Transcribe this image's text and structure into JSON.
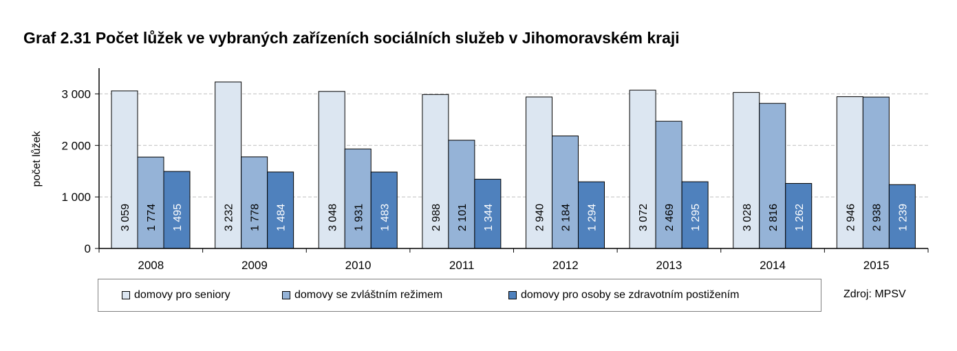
{
  "title": "Graf 2.31 Počet lůžek ve vybraných zařízeních sociálních služeb v Jihomoravském kraji",
  "source": "Zdroj: MPSV",
  "colors": {
    "series1": "#dce6f1",
    "series2": "#95b3d7",
    "series3": "#4f81bd",
    "gridline": "#bfbfbf",
    "axis": "#000000"
  },
  "chart_data": {
    "type": "bar",
    "categories": [
      "2008",
      "2009",
      "2010",
      "2011",
      "2012",
      "2013",
      "2014",
      "2015"
    ],
    "series": [
      {
        "name": "domovy pro seniory",
        "values": [
          3059,
          3232,
          3048,
          2988,
          2940,
          3072,
          3028,
          2946
        ],
        "labels": [
          "3 059",
          "3 232",
          "3 048",
          "2 988",
          "2 940",
          "3 072",
          "3 028",
          "2 946"
        ]
      },
      {
        "name": "domovy se zvláštním režimem",
        "values": [
          1774,
          1778,
          1931,
          2101,
          2184,
          2469,
          2816,
          2938
        ],
        "labels": [
          "1 774",
          "1 778",
          "1 931",
          "2 101",
          "2 184",
          "2 469",
          "2 816",
          "2 938"
        ]
      },
      {
        "name": "domovy pro osoby se zdravotním postižením",
        "values": [
          1495,
          1484,
          1483,
          1344,
          1294,
          1295,
          1262,
          1239
        ],
        "labels": [
          "1 495",
          "1 484",
          "1 483",
          "1 344",
          "1 294",
          "1 295",
          "1 262",
          "1 239"
        ]
      }
    ],
    "ylabel": "počet lůžek",
    "xlabel": "",
    "ylim": [
      0,
      3500
    ],
    "yticks": [
      0,
      1000,
      2000,
      3000
    ],
    "ytick_labels": [
      "0",
      "1 000",
      "2 000",
      "3 000"
    ],
    "grid": true,
    "legend_position": "bottom"
  }
}
